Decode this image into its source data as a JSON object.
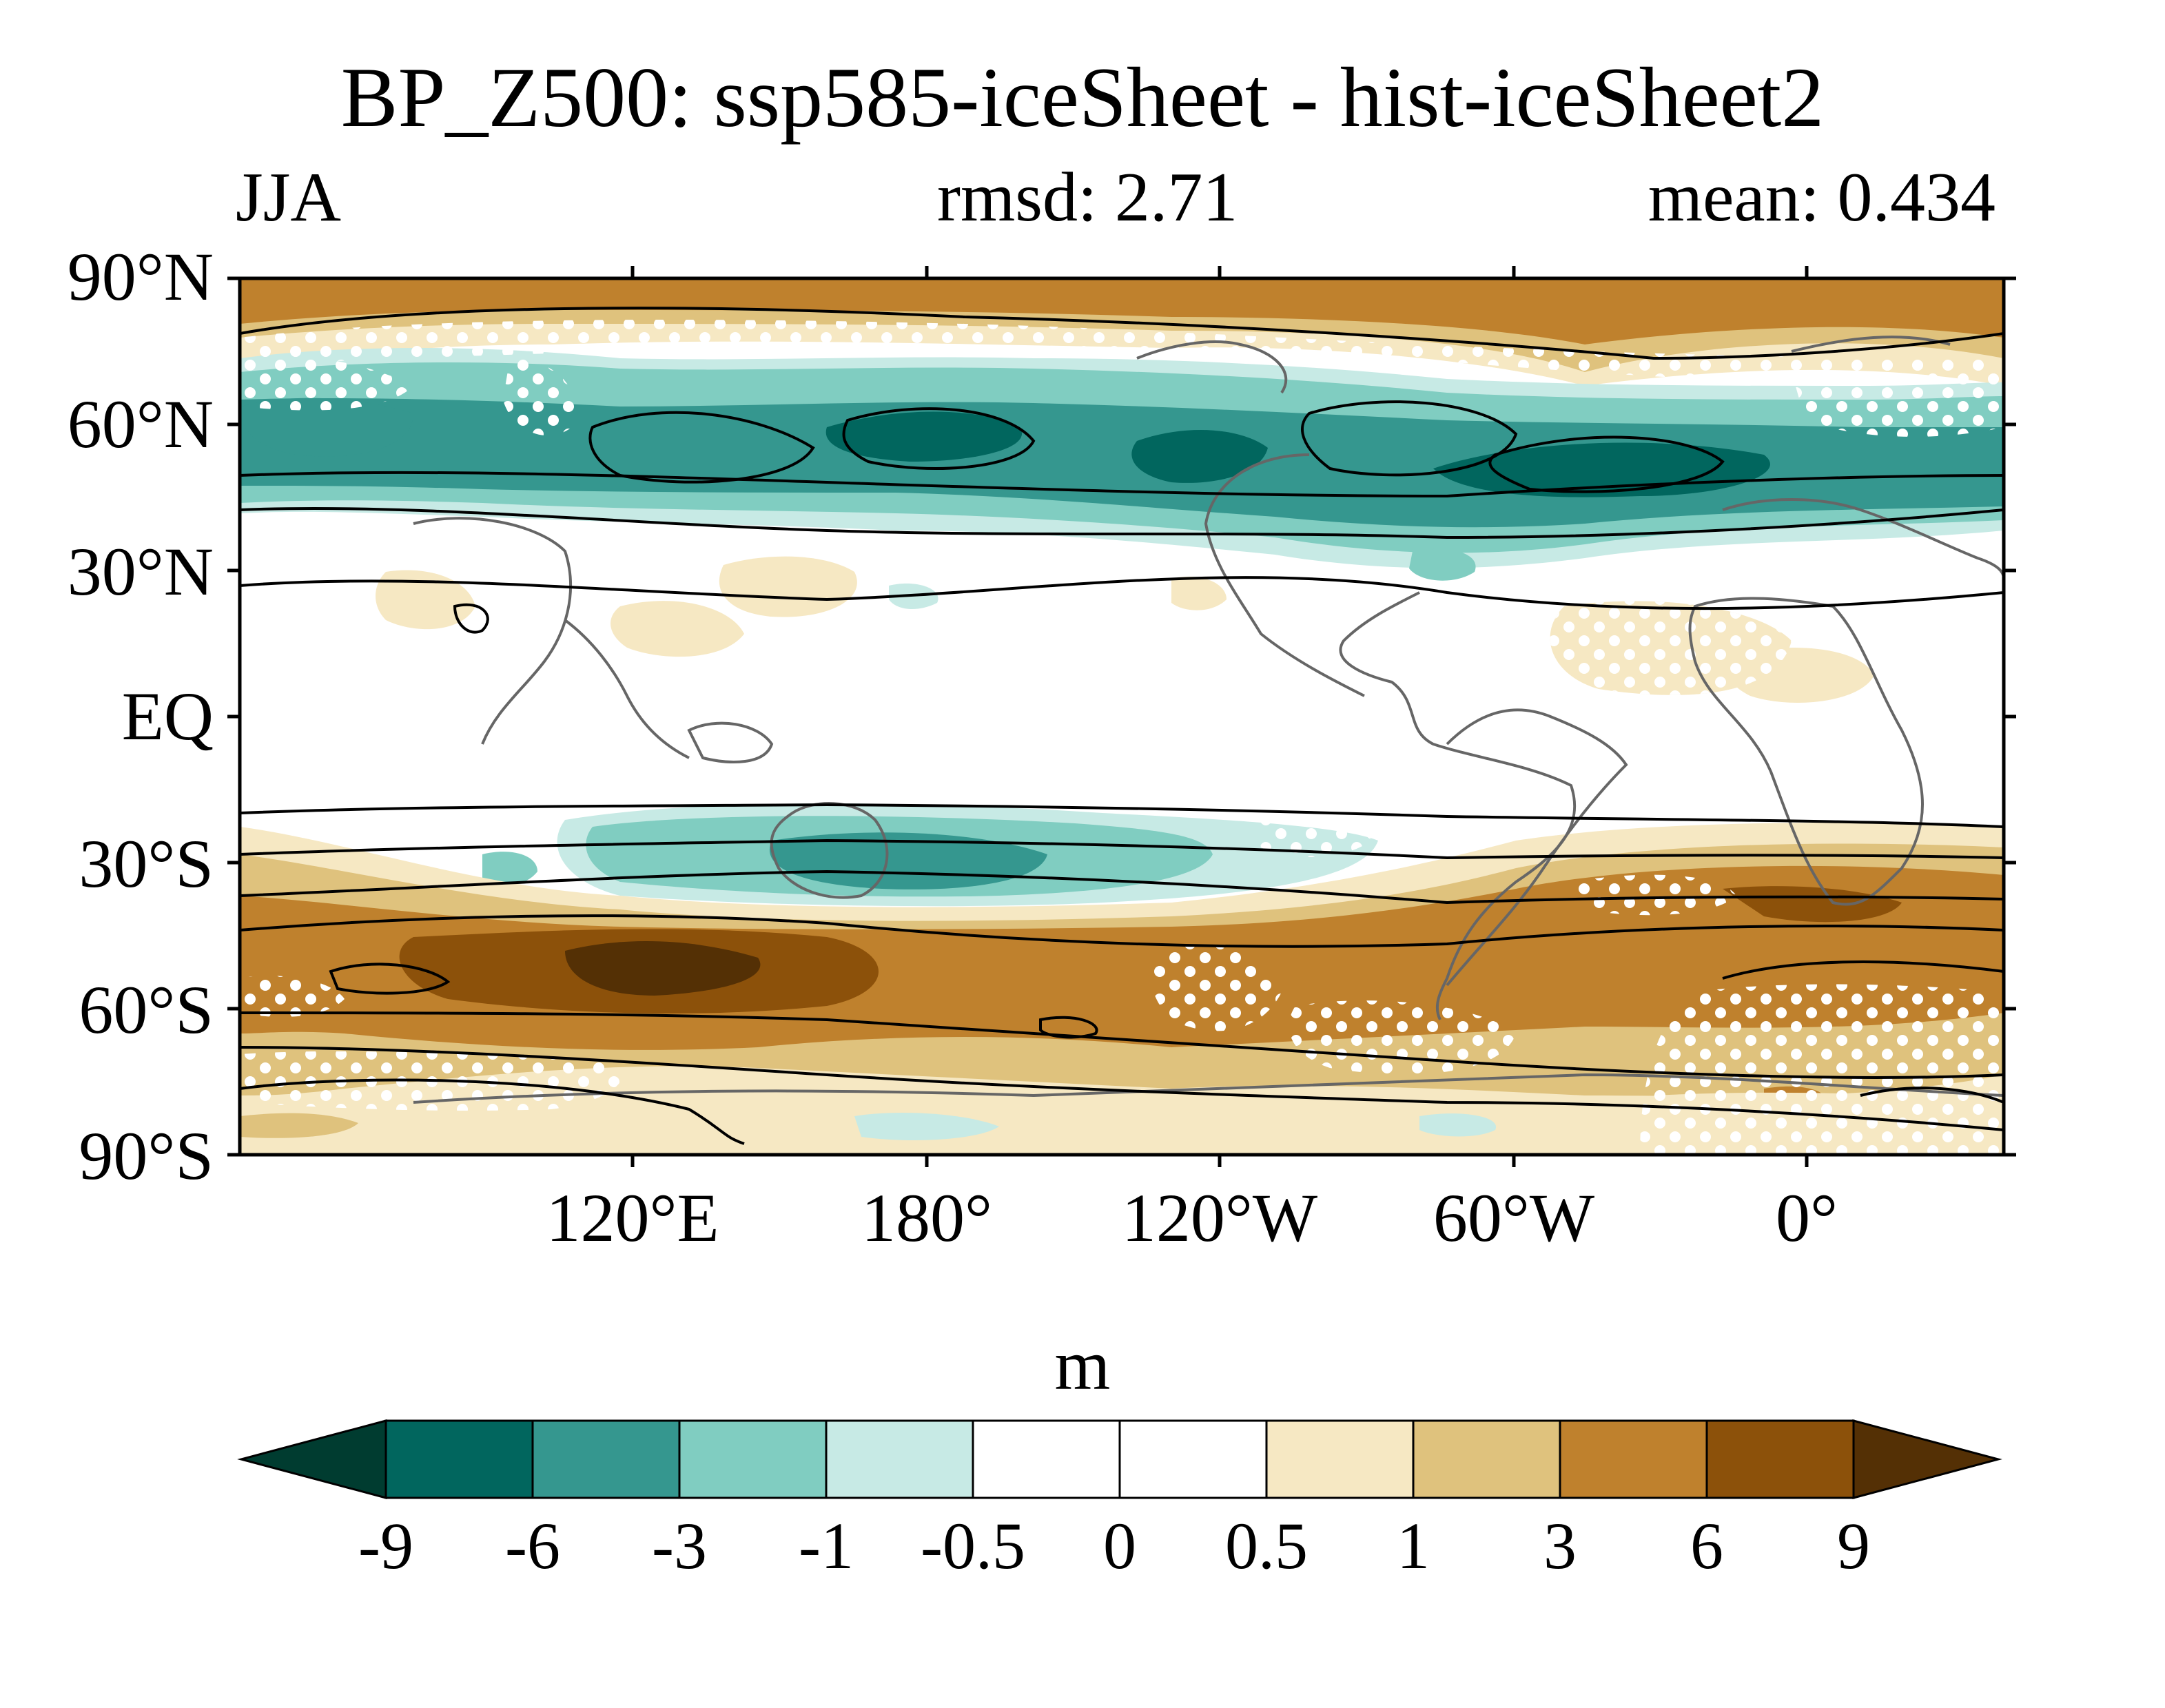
{
  "title": "BP_Z500: ssp585-iceSheet - hist-iceSheet2",
  "season": "JJA",
  "rmsd_text": "rmsd: 2.71",
  "mean_text": "mean: 0.434",
  "units": "m",
  "lat_labels": [
    "90°N",
    "60°N",
    "30°N",
    "EQ",
    "30°S",
    "60°S",
    "90°S"
  ],
  "lon_labels": [
    "120°E",
    "180°",
    "120°W",
    "60°W",
    "0°"
  ],
  "colorbar": {
    "labels": [
      "-9",
      "-6",
      "-3",
      "-1",
      "-0.5",
      "0",
      "0.5",
      "1",
      "3",
      "6",
      "9"
    ],
    "colors": [
      "#003c30",
      "#01665e",
      "#35978f",
      "#80cdc1",
      "#c7eae5",
      "#ffffff",
      "#ffffff",
      "#f6e8c3",
      "#dfc27d",
      "#bf812d",
      "#8c510a",
      "#543005"
    ]
  },
  "chart_data": {
    "type": "contour map",
    "title": "BP_Z500: ssp585-iceSheet - hist-iceSheet2",
    "subtitle_left": "JJA",
    "subtitle_center": "rmsd: 2.71",
    "subtitle_right": "mean: 0.434",
    "units": "m",
    "lat_range": [
      -90,
      90
    ],
    "lon_range": [
      40,
      400
    ],
    "levels": [
      -9,
      -6,
      -3,
      -1,
      -0.5,
      0,
      0.5,
      1,
      3,
      6,
      9
    ],
    "fill_colors": [
      "#003c30",
      "#01665e",
      "#35978f",
      "#80cdc1",
      "#c7eae5",
      "#ffffff",
      "#ffffff",
      "#f6e8c3",
      "#dfc27d",
      "#bf812d",
      "#8c510a",
      "#543005"
    ],
    "features": {
      "negative_bands": [
        {
          "lat_center": 52,
          "lat_halfwidth": 9,
          "min_value": -7,
          "notes": "North Pacific / North Atlantic midlatitude band"
        },
        {
          "lat_center": -29,
          "lat_halfwidth": 6,
          "min_value": -5,
          "notes": "South Pacific subtropical band"
        }
      ],
      "positive_bands": [
        {
          "lat_center": 83,
          "lat_halfwidth": 6,
          "max_value": 4,
          "notes": "Arctic cap"
        },
        {
          "lat_center": -50,
          "lat_halfwidth": 12,
          "max_value": 8,
          "notes": "Southern Ocean band, maximum near 150°E"
        },
        {
          "lat_center": -80,
          "lat_halfwidth": 5,
          "max_value": 3,
          "notes": "Antarctic margin"
        }
      ],
      "stippling": "white dots mark statistically significant regions",
      "contours": "black lines show climatological Z500"
    }
  }
}
